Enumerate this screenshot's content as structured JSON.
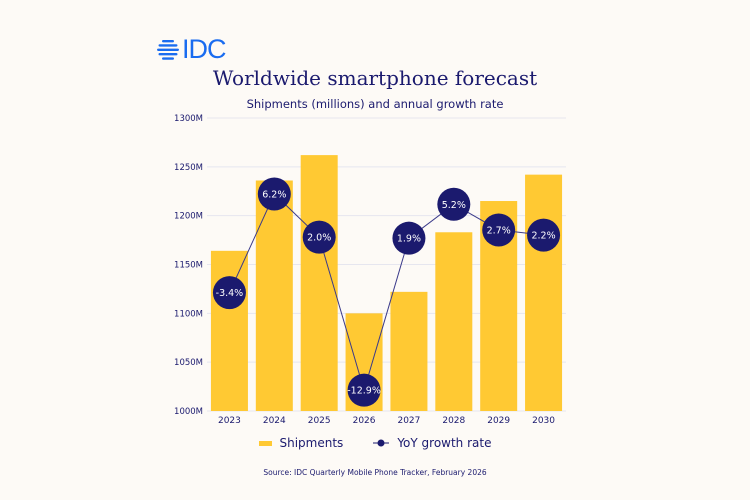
{
  "brand": {
    "logo_text": "IDC",
    "logo_color": "#1a6cf0"
  },
  "chart_data": {
    "type": "bar+line",
    "title": "Worldwide smartphone forecast",
    "subtitle": "Shipments (millions) and annual growth rate",
    "categories": [
      "2023",
      "2024",
      "2025",
      "2026",
      "2027",
      "2028",
      "2029",
      "2030"
    ],
    "series": [
      {
        "name": "Shipments",
        "type": "bar",
        "color": "#ffc933",
        "values": [
          1164,
          1236,
          1262,
          1100,
          1122,
          1183,
          1215,
          1242
        ]
      },
      {
        "name": "YoY growth rate",
        "type": "line",
        "color": "#1b1a6e",
        "values": [
          -3.4,
          6.2,
          2.0,
          -12.9,
          1.9,
          5.2,
          2.7,
          2.2
        ],
        "labels": [
          "-3.4%",
          "6.2%",
          "2.0%",
          "-12.9%",
          "1.9%",
          "5.2%",
          "2.7%",
          "2.2%"
        ]
      }
    ],
    "ylim": [
      1000,
      1300
    ],
    "yticks": [
      1000,
      1050,
      1100,
      1150,
      1200,
      1250,
      1300
    ],
    "ytick_labels": [
      "1000M",
      "1050M",
      "1100M",
      "1150M",
      "1200M",
      "1250M",
      "1300M"
    ],
    "grid": true,
    "legend": "bottom",
    "source": "Source:  IDC Quarterly Mobile Phone Tracker, February 2026"
  }
}
